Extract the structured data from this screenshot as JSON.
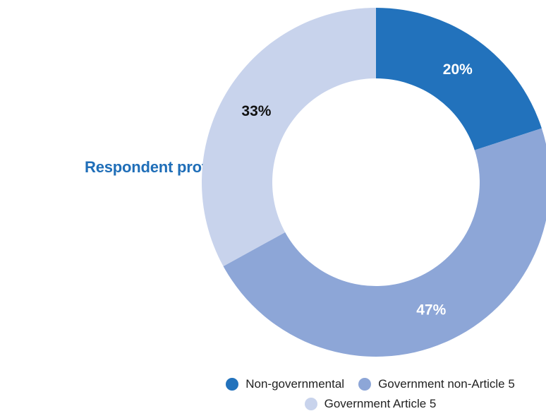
{
  "side_title": "Respondent profile:",
  "chart_data": {
    "type": "pie",
    "donut": true,
    "title": "Respondent profile:",
    "slices": [
      {
        "name": "Non-governmental",
        "value": 20,
        "label": "20%",
        "color": "#2272bc",
        "label_color": "#ffffff"
      },
      {
        "name": "Government non-Article 5",
        "value": 47,
        "label": "47%",
        "color": "#8da6d7",
        "label_color": "#ffffff"
      },
      {
        "name": "Government Article 5",
        "value": 33,
        "label": "33%",
        "color": "#c8d3ec",
        "label_color": "#111111"
      }
    ],
    "legend_position": "bottom"
  }
}
